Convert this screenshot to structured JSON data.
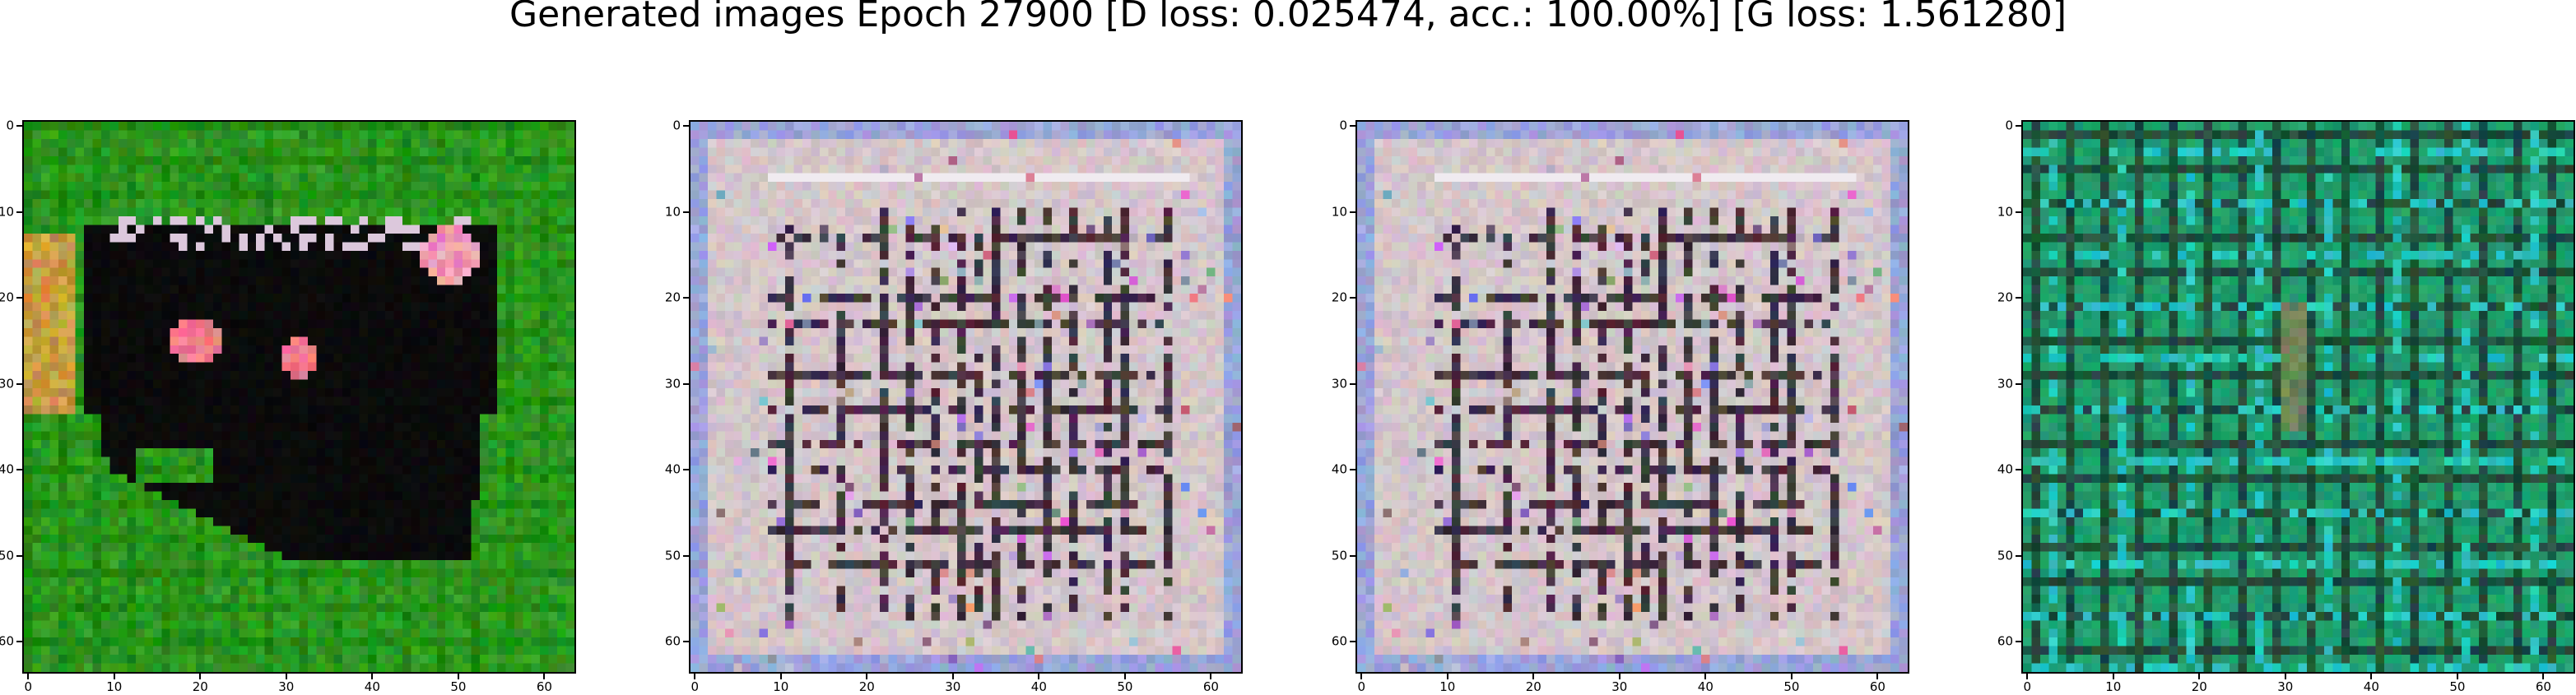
{
  "figure": {
    "title": "Generated images Epoch 27900 [D loss: 0.025474, acc.: 100.00%] [G loss: 1.561280]"
  },
  "axes": {
    "image_size": 64,
    "x_ticks": [
      "0",
      "10",
      "20",
      "30",
      "40",
      "50",
      "60"
    ],
    "y_ticks": [
      "0",
      "10",
      "20",
      "30",
      "40",
      "50",
      "60"
    ]
  },
  "panels": [
    {
      "name": "generated-image-1",
      "description_colors": {
        "background": "#2f9a22",
        "blob": "#050505",
        "spots": "#f07a8a",
        "edge_tint": "#c99a40"
      }
    },
    {
      "name": "generated-image-2",
      "description_colors": {
        "background": "#d4c6ca",
        "lines": "#2a1a28",
        "tint": "#9aa4d8"
      }
    },
    {
      "name": "generated-image-3",
      "description_colors": {
        "background": "#d4c6ca",
        "lines": "#2a1a28",
        "tint": "#9aa4d8"
      }
    },
    {
      "name": "generated-image-4",
      "description_colors": {
        "background": "#1f9e6e",
        "lines": "#0c3a28",
        "highlight": "#27c6c2"
      }
    }
  ]
}
